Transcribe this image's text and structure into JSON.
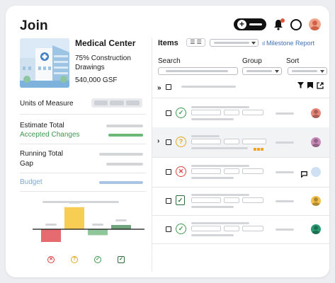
{
  "header": {
    "logo": "Join",
    "add_icon": "plus-icon",
    "colors": {
      "notification_dot": "#e5533c"
    }
  },
  "project": {
    "name": "Medical Center",
    "phase": "75% Construction Drawings",
    "area": "540,000 GSF",
    "image_icon": "hospital-building-image"
  },
  "summary": {
    "units_label": "Units of Measure",
    "estimate_total": "Estimate Total",
    "accepted_changes": "Accepted Changes",
    "running_total": "Running Total",
    "gap": "Gap",
    "budget": "Budget",
    "colors": {
      "accepted": "#3b9a4e",
      "budget": "#7ba7d4"
    }
  },
  "items_panel": {
    "title": "Items",
    "view_toggle_icon": "list-view-icon",
    "milestone_report": "Milestone Report",
    "milestone_icon": "bar-chart-icon",
    "filters": {
      "search": "Search",
      "group": "Group",
      "sort": "Sort"
    },
    "header_icons": [
      "collapse-all-icon",
      "filter-icon",
      "bookmark-icon",
      "share-icon"
    ],
    "rows": [
      {
        "status": "accepted",
        "status_icon": "check-circle-icon",
        "avatar_color": "#e8867a"
      },
      {
        "status": "pending",
        "status_icon": "question-circle-icon",
        "avatar_color": "#c88bb8",
        "expandable": true,
        "highlighted": true
      },
      {
        "status": "rejected",
        "status_icon": "x-circle-icon",
        "avatar_color": "#cfe0f3",
        "comment_icon": "comment-icon"
      },
      {
        "status": "implemented",
        "status_icon": "clipboard-check-icon",
        "avatar_color": "#f3c04a"
      },
      {
        "status": "accepted",
        "status_icon": "check-circle-icon",
        "avatar_color": "#2a9a72"
      }
    ]
  },
  "chart_data": {
    "type": "bar",
    "categories": [
      "rejected",
      "pending",
      "accepted",
      "implemented"
    ],
    "values": [
      -1.5,
      2.6,
      -0.7,
      0.5
    ],
    "colors": [
      "#e56b71",
      "#f7cd54",
      "#8fc79a",
      "#6ea37b"
    ],
    "legend_icons": [
      "x-circle-icon",
      "question-circle-icon",
      "check-circle-icon",
      "clipboard-check-icon"
    ],
    "legend_colors": [
      "#d9413d",
      "#e3a91a",
      "#3b9a4e",
      "#2f6e3c"
    ],
    "ylim": [
      -2.5,
      3.2
    ]
  }
}
